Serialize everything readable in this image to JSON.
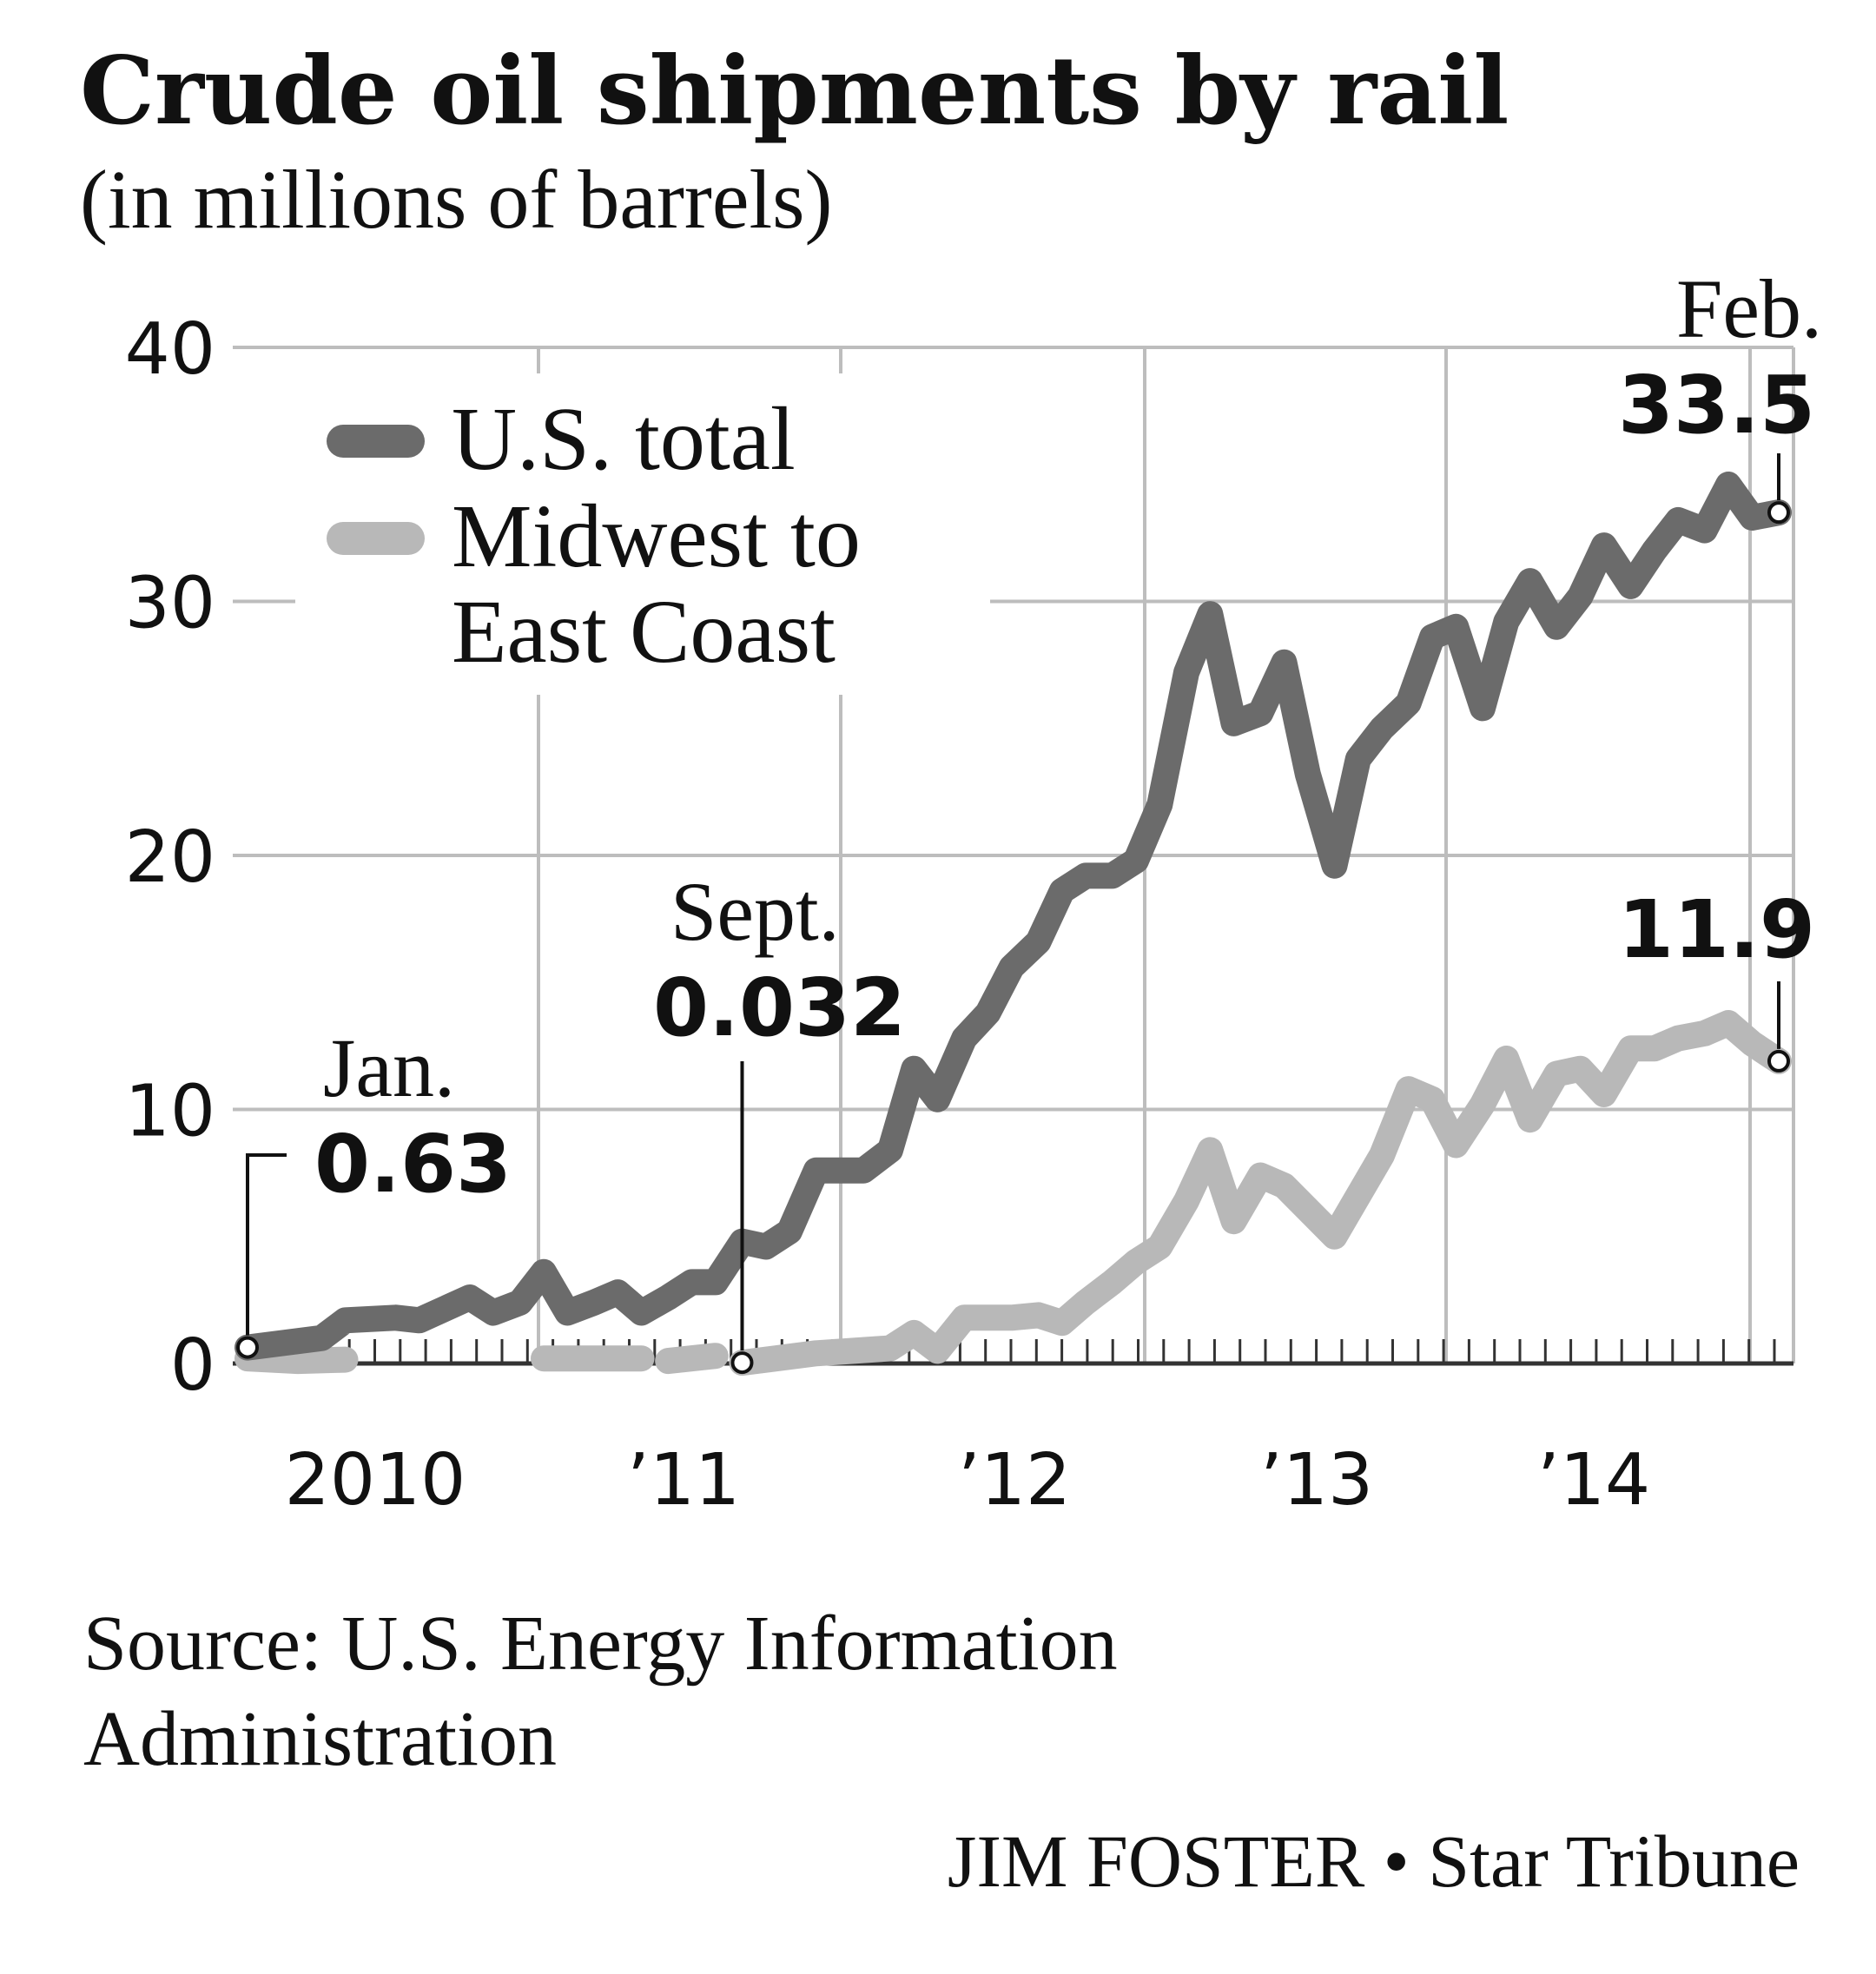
{
  "header": {
    "title": "Crude oil shipments by rail",
    "subtitle": "(in millions of barrels)"
  },
  "legend": {
    "us_total": "U.S. total",
    "midwest_line1": "Midwest to",
    "midwest_line2": "East Coast"
  },
  "annotations": {
    "jan_label": "Jan.",
    "jan_value": "0.63",
    "sept_label": "Sept.",
    "sept_value": "0.032",
    "feb_label": "Feb.",
    "feb_value": "33.5",
    "midwest_end_value": "11.9"
  },
  "footer": {
    "source_line1": "Source: U.S. Energy Information",
    "source_line2": "Administration",
    "credit": "JIM FOSTER • Star Tribune"
  },
  "colors": {
    "us_total": "#6b6b6b",
    "midwest": "#b8b8b8",
    "grid": "#bdbdbd",
    "axis": "#333333"
  },
  "chart_data": {
    "type": "line",
    "title": "Crude oil shipments by rail",
    "subtitle": "(in millions of barrels)",
    "ylim": [
      0,
      40
    ],
    "yticks": [
      0,
      10,
      20,
      30,
      40
    ],
    "xlim": [
      2010.0,
      2015.17
    ],
    "xtick_labels": [
      "2010",
      "’11",
      "’12",
      "’13",
      "’14"
    ],
    "grid": true,
    "legend_position": "top-left",
    "series": [
      {
        "name": "U.S. total",
        "color_key": "us_total",
        "points": [
          [
            2010.0,
            0.63
          ],
          [
            2010.25,
            1.0
          ],
          [
            2010.33,
            1.7
          ],
          [
            2010.5,
            1.8
          ],
          [
            2010.58,
            1.7
          ],
          [
            2010.75,
            2.6
          ],
          [
            2010.83,
            2.0
          ],
          [
            2010.92,
            2.4
          ],
          [
            2011.0,
            3.6
          ],
          [
            2011.08,
            2.0
          ],
          [
            2011.17,
            2.4
          ],
          [
            2011.25,
            2.8
          ],
          [
            2011.33,
            2.0
          ],
          [
            2011.42,
            2.6
          ],
          [
            2011.5,
            3.2
          ],
          [
            2011.58,
            3.2
          ],
          [
            2011.67,
            4.8
          ],
          [
            2011.75,
            4.6
          ],
          [
            2011.83,
            5.2
          ],
          [
            2011.92,
            7.6
          ],
          [
            2012.0,
            7.6
          ],
          [
            2012.08,
            7.6
          ],
          [
            2012.17,
            8.4
          ],
          [
            2012.25,
            11.6
          ],
          [
            2012.33,
            10.4
          ],
          [
            2012.42,
            12.8
          ],
          [
            2012.5,
            13.8
          ],
          [
            2012.58,
            15.6
          ],
          [
            2012.67,
            16.6
          ],
          [
            2012.75,
            18.6
          ],
          [
            2012.83,
            19.2
          ],
          [
            2012.92,
            19.2
          ],
          [
            2013.0,
            19.8
          ],
          [
            2013.08,
            22.0
          ],
          [
            2013.17,
            27.2
          ],
          [
            2013.25,
            29.5
          ],
          [
            2013.33,
            25.2
          ],
          [
            2013.42,
            25.6
          ],
          [
            2013.5,
            27.6
          ],
          [
            2013.58,
            23.2
          ],
          [
            2013.67,
            19.6
          ],
          [
            2013.75,
            23.8
          ],
          [
            2013.83,
            25.0
          ],
          [
            2013.92,
            26.0
          ],
          [
            2014.0,
            28.6
          ],
          [
            2014.08,
            29.0
          ],
          [
            2014.17,
            25.8
          ],
          [
            2014.25,
            29.2
          ],
          [
            2014.33,
            30.8
          ],
          [
            2014.42,
            29.0
          ],
          [
            2014.5,
            30.2
          ],
          [
            2014.58,
            32.2
          ],
          [
            2014.67,
            30.6
          ],
          [
            2014.75,
            32.0
          ],
          [
            2014.83,
            33.2
          ],
          [
            2014.92,
            32.8
          ],
          [
            2015.0,
            34.6
          ],
          [
            2015.08,
            33.3
          ],
          [
            2015.17,
            33.5
          ]
        ]
      },
      {
        "name": "Midwest to East Coast",
        "color_key": "midwest",
        "segments": [
          [
            [
              2010.0,
              0.2
            ],
            [
              2010.17,
              0.1
            ],
            [
              2010.33,
              0.15
            ]
          ],
          [
            [
              2011.0,
              0.2
            ],
            [
              2011.33,
              0.2
            ]
          ],
          [
            [
              2011.42,
              0.1
            ],
            [
              2011.58,
              0.3
            ]
          ],
          [
            [
              2011.67,
              0.032
            ],
            [
              2011.92,
              0.4
            ],
            [
              2012.17,
              0.6
            ],
            [
              2012.25,
              1.2
            ],
            [
              2012.33,
              0.5
            ],
            [
              2012.42,
              1.8
            ],
            [
              2012.58,
              1.8
            ],
            [
              2012.67,
              1.9
            ],
            [
              2012.75,
              1.6
            ],
            [
              2012.83,
              2.4
            ],
            [
              2012.92,
              3.2
            ],
            [
              2013.0,
              4.0
            ],
            [
              2013.08,
              4.6
            ],
            [
              2013.17,
              6.4
            ],
            [
              2013.25,
              8.4
            ],
            [
              2013.33,
              5.6
            ],
            [
              2013.42,
              7.4
            ],
            [
              2013.5,
              7.0
            ],
            [
              2013.67,
              5.0
            ],
            [
              2013.83,
              8.2
            ],
            [
              2013.92,
              10.8
            ],
            [
              2014.0,
              10.4
            ],
            [
              2014.08,
              8.6
            ],
            [
              2014.17,
              10.2
            ],
            [
              2014.25,
              12.0
            ],
            [
              2014.33,
              9.6
            ],
            [
              2014.42,
              11.4
            ],
            [
              2014.5,
              11.6
            ],
            [
              2014.58,
              10.6
            ],
            [
              2014.67,
              12.4
            ],
            [
              2014.75,
              12.4
            ],
            [
              2014.83,
              12.8
            ],
            [
              2014.92,
              13.0
            ],
            [
              2015.0,
              13.4
            ],
            [
              2015.08,
              12.6
            ],
            [
              2015.17,
              11.9
            ]
          ]
        ]
      }
    ],
    "annotations": [
      {
        "series": "U.S. total",
        "label": "Jan.",
        "value": "0.63",
        "x": 2010.0,
        "y": 0.63
      },
      {
        "series": "Midwest to East Coast",
        "label": "Sept.",
        "value": "0.032",
        "x": 2011.67,
        "y": 0.032
      },
      {
        "series": "U.S. total",
        "label": "Feb.",
        "value": "33.5",
        "x": 2015.17,
        "y": 33.5
      },
      {
        "series": "Midwest to East Coast",
        "label": "",
        "value": "11.9",
        "x": 2015.17,
        "y": 11.9
      }
    ]
  }
}
